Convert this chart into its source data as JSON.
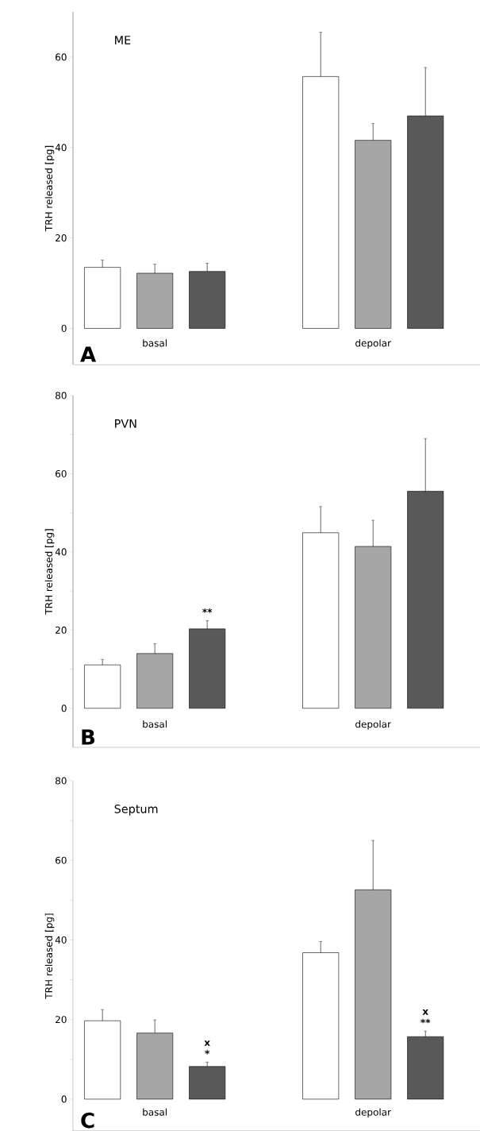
{
  "chart_data": [
    {
      "type": "bar",
      "title": "ME",
      "ylabel": "TRH released [pg]",
      "categories": [
        "basal",
        "depolar"
      ],
      "series": [
        {
          "color": "#ffffff",
          "values": [
            13.5,
            55.7
          ],
          "errors": [
            1.6,
            9.8
          ]
        },
        {
          "color": "#a6a6a6",
          "values": [
            12.2,
            41.6
          ],
          "errors": [
            2.0,
            3.7
          ]
        },
        {
          "color": "#595959",
          "values": [
            12.6,
            47.0
          ],
          "errors": [
            1.8,
            10.7
          ]
        }
      ],
      "ylim": [
        -8,
        70
      ],
      "yticks": [
        0,
        20,
        40,
        60
      ],
      "annotations": [
        "A"
      ]
    },
    {
      "type": "bar",
      "title": "PVN",
      "ylabel": "TRH released [pg]",
      "categories": [
        "basal",
        "depolar"
      ],
      "series": [
        {
          "color": "#ffffff",
          "values": [
            11.1,
            44.9
          ],
          "errors": [
            1.4,
            6.7
          ]
        },
        {
          "color": "#a6a6a6",
          "values": [
            14.0,
            41.4
          ],
          "errors": [
            2.5,
            6.7
          ]
        },
        {
          "color": "#595959",
          "values": [
            20.3,
            55.5
          ],
          "errors": [
            2.1,
            13.5
          ]
        }
      ],
      "ylim": [
        -10,
        80
      ],
      "yticks": [
        0,
        {
          "value": 10,
          "label": null
        },
        20,
        {
          "value": 30,
          "label": null
        },
        40,
        {
          "value": 50,
          "label": null
        },
        60,
        {
          "value": 70,
          "label": null
        },
        80
      ],
      "annotations": [
        "B",
        "**"
      ]
    },
    {
      "type": "bar",
      "title": "Septum",
      "ylabel": "TRH released [pg]",
      "categories": [
        "basal",
        "depolar"
      ],
      "series": [
        {
          "color": "#ffffff",
          "values": [
            19.7,
            36.8
          ],
          "errors": [
            2.8,
            2.8
          ]
        },
        {
          "color": "#a6a6a6",
          "values": [
            16.6,
            52.6
          ],
          "errors": [
            3.3,
            12.4
          ]
        },
        {
          "color": "#595959",
          "values": [
            8.2,
            15.7
          ],
          "errors": [
            1.1,
            1.4
          ]
        }
      ],
      "ylim": [
        -8,
        80
      ],
      "yticks": [
        0,
        {
          "value": 10,
          "label": null
        },
        20,
        {
          "value": 30,
          "label": null
        },
        40,
        {
          "value": 50,
          "label": null
        },
        60,
        {
          "value": 70,
          "label": null
        },
        80
      ],
      "annotations": [
        "C",
        "*",
        "x",
        "**",
        "x"
      ]
    }
  ]
}
